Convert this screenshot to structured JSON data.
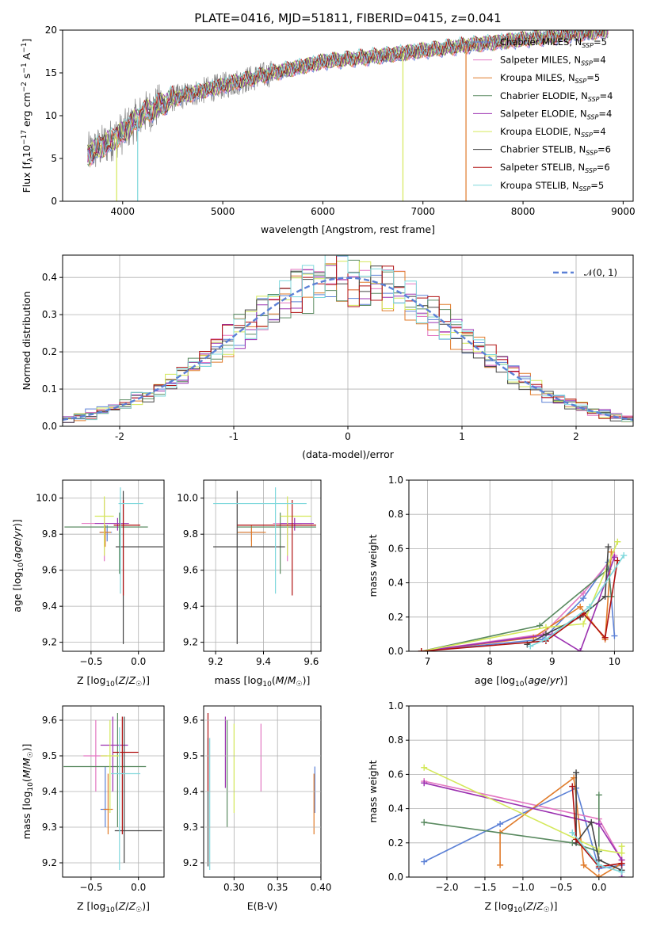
{
  "figure": {
    "title": "PLATE=0416, MJD=51811, FIBERID=0415, z=0.041"
  },
  "colors": {
    "Chabrier MILES": "#5b80d6",
    "Salpeter MILES": "#e377c2",
    "Kroupa MILES": "#e07b2a",
    "Chabrier ELODIE": "#5a8a60",
    "Salpeter ELODIE": "#9b30b0",
    "Kroupa ELODIE": "#d4e85a",
    "Chabrier STELIB": "#444444",
    "Salpeter STELIB": "#b01010",
    "Kroupa STELIB": "#7fd8dc",
    "data": "#808080"
  },
  "chart_data": [
    {
      "id": "spectrum",
      "type": "line",
      "title": "PLATE=0416, MJD=51811, FIBERID=0415, z=0.041",
      "xlabel": "wavelength [Angstrom, rest frame]",
      "ylabel": "Flux [f_λ10^-17 erg cm^-2 s^-1 A^-1]",
      "xlim": [
        3400,
        9100
      ],
      "ylim": [
        0,
        20
      ],
      "xticks": [
        4000,
        5000,
        6000,
        7000,
        8000,
        9000
      ],
      "yticks": [
        0,
        5,
        10,
        15,
        20
      ],
      "grid": false,
      "legend_position": "top-right",
      "series": [
        {
          "name": "Chabrier MILES, N_SSP=5"
        },
        {
          "name": "Salpeter MILES, N_SSP=4"
        },
        {
          "name": "Kroupa MILES, N_SSP=5"
        },
        {
          "name": "Chabrier ELODIE, N_SSP=4"
        },
        {
          "name": "Salpeter ELODIE, N_SSP=4"
        },
        {
          "name": "Kroupa ELODIE, N_SSP=4"
        },
        {
          "name": "Chabrier STELIB, N_SSP=6"
        },
        {
          "name": "Salpeter STELIB, N_SSP=6"
        },
        {
          "name": "Kroupa STELIB, N_SSP=5"
        }
      ],
      "continuum": {
        "x": [
          3650,
          3800,
          4000,
          4200,
          4500,
          5000,
          5500,
          6000,
          6500,
          7000,
          7500,
          8000,
          8500,
          8850
        ],
        "y": [
          5.5,
          6.5,
          8.0,
          10.2,
          12.0,
          13.5,
          15.0,
          16.3,
          16.9,
          17.6,
          18.3,
          18.9,
          19.5,
          20.0
        ]
      },
      "dropouts": [
        {
          "model": "Kroupa ELODIE",
          "x": 3940
        },
        {
          "model": "Kroupa STELIB",
          "x": 4150
        },
        {
          "model": "Kroupa ELODIE",
          "x": 6800
        },
        {
          "model": "Kroupa MILES",
          "x": 7430
        }
      ]
    },
    {
      "id": "residuals",
      "type": "step",
      "xlabel": "(data-model)/error",
      "ylabel": "Normed distribution",
      "xlim": [
        -2.5,
        2.5
      ],
      "ylim": [
        0,
        0.46
      ],
      "xticks": [
        -2,
        -1,
        0,
        1,
        2
      ],
      "yticks": [
        0.0,
        0.1,
        0.2,
        0.3,
        0.4
      ],
      "grid": true,
      "legend_position": "top-right",
      "reference": {
        "name": "𝒩(0, 1)",
        "mean": 0,
        "sigma": 1
      },
      "bin_width": 0.1
    },
    {
      "id": "age_vs_Z",
      "type": "errorbar",
      "xlabel": "Z [log10(Z/Z☉)]",
      "ylabel": "age [log10(age/yr)]",
      "xlim": [
        -0.8,
        0.27
      ],
      "ylim": [
        9.15,
        10.1
      ],
      "xticks": [
        -0.5,
        0.0
      ],
      "yticks": [
        9.2,
        9.4,
        9.6,
        9.8,
        10.0
      ],
      "grid": true,
      "points": [
        {
          "model": "Chabrier MILES",
          "x": -0.33,
          "xerr": [
            0.08,
            0.05
          ],
          "y": 9.81,
          "yerr": [
            0.05,
            0.04
          ]
        },
        {
          "model": "Salpeter MILES",
          "x": -0.36,
          "xerr": [
            0.24,
            0.12
          ],
          "y": 9.86,
          "yerr": [
            0.21,
            0.13
          ]
        },
        {
          "model": "Kroupa MILES",
          "x": -0.35,
          "xerr": [
            0.06,
            0.06
          ],
          "y": 9.81,
          "yerr": [
            0.08,
            0.04
          ]
        },
        {
          "model": "Chabrier ELODIE",
          "x": -0.2,
          "xerr": [
            0.58,
            0.3
          ],
          "y": 9.84,
          "yerr": [
            0.26,
            0.08
          ]
        },
        {
          "model": "Salpeter ELODIE",
          "x": -0.22,
          "xerr": [
            0.24,
            0.12
          ],
          "y": 9.86,
          "yerr": [
            0.04,
            0.03
          ]
        },
        {
          "model": "Kroupa ELODIE",
          "x": -0.36,
          "xerr": [
            0.1,
            0.1
          ],
          "y": 9.9,
          "yerr": [
            0.22,
            0.11
          ]
        },
        {
          "model": "Chabrier STELIB",
          "x": -0.16,
          "xerr": [
            0.08,
            0.42
          ],
          "y": 9.73,
          "yerr": [
            0.54,
            0.31
          ]
        },
        {
          "model": "Salpeter STELIB",
          "x": -0.16,
          "xerr": [
            0.1,
            0.18
          ],
          "y": 9.85,
          "yerr": [
            0.39,
            0.14
          ]
        },
        {
          "model": "Kroupa STELIB",
          "x": -0.19,
          "xerr": [
            0.02,
            0.24
          ],
          "y": 9.97,
          "yerr": [
            0.5,
            0.09
          ]
        }
      ]
    },
    {
      "id": "age_vs_mass",
      "type": "errorbar",
      "xlabel": "mass [log10(M/M☉)]",
      "ylabel": "",
      "xlim": [
        9.15,
        9.64
      ],
      "ylim": [
        9.15,
        10.1
      ],
      "xticks": [
        9.2,
        9.4,
        9.6
      ],
      "yticks": [
        9.2,
        9.4,
        9.6,
        9.8,
        10.0
      ],
      "grid": true,
      "points": [
        {
          "model": "Chabrier MILES",
          "x": 9.35,
          "xerr": [
            0.05,
            0.05
          ],
          "y": 9.81,
          "yerr": [
            0.05,
            0.04
          ]
        },
        {
          "model": "Salpeter MILES",
          "x": 9.5,
          "xerr": [
            0.06,
            0.06
          ],
          "y": 9.86,
          "yerr": [
            0.21,
            0.13
          ]
        },
        {
          "model": "Kroupa MILES",
          "x": 9.35,
          "xerr": [
            0.06,
            0.06
          ],
          "y": 9.81,
          "yerr": [
            0.08,
            0.04
          ]
        },
        {
          "model": "Chabrier ELODIE",
          "x": 9.47,
          "xerr": [
            0.18,
            0.15
          ],
          "y": 9.84,
          "yerr": [
            0.26,
            0.08
          ]
        },
        {
          "model": "Salpeter ELODIE",
          "x": 9.53,
          "xerr": [
            0.06,
            0.08
          ],
          "y": 9.86,
          "yerr": [
            0.04,
            0.03
          ]
        },
        {
          "model": "Kroupa ELODIE",
          "x": 9.5,
          "xerr": [
            0.03,
            0.1
          ],
          "y": 9.9,
          "yerr": [
            0.22,
            0.11
          ]
        },
        {
          "model": "Chabrier STELIB",
          "x": 9.29,
          "xerr": [
            0.1,
            0.2
          ],
          "y": 9.73,
          "yerr": [
            0.54,
            0.31
          ]
        },
        {
          "model": "Salpeter STELIB",
          "x": 9.52,
          "xerr": [
            0.23,
            0.1
          ],
          "y": 9.85,
          "yerr": [
            0.39,
            0.14
          ]
        },
        {
          "model": "Kroupa STELIB",
          "x": 9.45,
          "xerr": [
            0.26,
            0.13
          ],
          "y": 9.97,
          "yerr": [
            0.5,
            0.09
          ]
        }
      ]
    },
    {
      "id": "weight_vs_age",
      "type": "line",
      "xlabel": "age [log10(age/yr)]",
      "ylabel": "mass weight",
      "xlim": [
        6.7,
        10.3
      ],
      "ylim": [
        0,
        1.0
      ],
      "xticks": [
        7,
        8,
        9,
        10
      ],
      "yticks": [
        0.0,
        0.2,
        0.4,
        0.6,
        0.8,
        1.0
      ],
      "grid": true,
      "series": [
        {
          "model": "Chabrier MILES",
          "x": [
            6.9,
            8.85,
            9.5,
            9.9,
            10.0
          ],
          "y": [
            0.0,
            0.07,
            0.31,
            0.52,
            0.09
          ]
        },
        {
          "model": "Salpeter MILES",
          "x": [
            6.9,
            8.85,
            9.5,
            10.0
          ],
          "y": [
            0.0,
            0.1,
            0.34,
            0.56
          ]
        },
        {
          "model": "Kroupa MILES",
          "x": [
            6.9,
            8.7,
            9.45,
            9.85,
            9.95
          ],
          "y": [
            0.0,
            0.08,
            0.26,
            0.07,
            0.58
          ]
        },
        {
          "model": "Chabrier ELODIE",
          "x": [
            6.9,
            8.8,
            9.9,
            9.95
          ],
          "y": [
            0.0,
            0.15,
            0.48,
            0.32
          ]
        },
        {
          "model": "Salpeter ELODIE",
          "x": [
            6.9,
            9.0,
            9.45,
            10.0
          ],
          "y": [
            0.0,
            0.1,
            0.0,
            0.55
          ]
        },
        {
          "model": "Kroupa ELODIE",
          "x": [
            6.9,
            8.9,
            9.5,
            10.05
          ],
          "y": [
            0.0,
            0.14,
            0.16,
            0.64
          ]
        },
        {
          "model": "Chabrier STELIB",
          "x": [
            8.6,
            8.9,
            9.45,
            9.85,
            9.9
          ],
          "y": [
            0.04,
            0.1,
            0.2,
            0.32,
            0.61
          ]
        },
        {
          "model": "Salpeter STELIB",
          "x": [
            6.9,
            8.9,
            9.5,
            9.85,
            10.05
          ],
          "y": [
            0.0,
            0.06,
            0.22,
            0.08,
            0.53
          ]
        },
        {
          "model": "Kroupa STELIB",
          "x": [
            8.65,
            8.9,
            9.6,
            10.15
          ],
          "y": [
            0.03,
            0.07,
            0.26,
            0.56
          ]
        }
      ]
    },
    {
      "id": "mass_vs_Z",
      "type": "errorbar",
      "xlabel": "Z [log10(Z/Z☉)]",
      "ylabel": "mass [log10(M/M☉)]",
      "xlim": [
        -0.8,
        0.27
      ],
      "ylim": [
        9.16,
        9.64
      ],
      "xticks": [
        -0.5,
        0.0
      ],
      "yticks": [
        9.2,
        9.3,
        9.4,
        9.5,
        9.6
      ],
      "grid": true,
      "points": [
        {
          "model": "Chabrier MILES",
          "x": -0.35,
          "xerr": [
            0.05,
            0.03
          ],
          "y": 9.35,
          "yerr": [
            0.05,
            0.12
          ]
        },
        {
          "model": "Salpeter MILES",
          "x": -0.45,
          "xerr": [
            0.13,
            0.12
          ],
          "y": 9.5,
          "yerr": [
            0.1,
            0.1
          ]
        },
        {
          "model": "Kroupa MILES",
          "x": -0.32,
          "xerr": [
            0.05,
            0.05
          ],
          "y": 9.35,
          "yerr": [
            0.07,
            0.1
          ]
        },
        {
          "model": "Chabrier ELODIE",
          "x": -0.22,
          "xerr": [
            0.57,
            0.3
          ],
          "y": 9.47,
          "yerr": [
            0.17,
            0.15
          ]
        },
        {
          "model": "Salpeter ELODIE",
          "x": -0.27,
          "xerr": [
            0.13,
            0.16
          ],
          "y": 9.53,
          "yerr": [
            0.13,
            0.08
          ]
        },
        {
          "model": "Kroupa ELODIE",
          "x": -0.3,
          "xerr": [
            0.1,
            0.1
          ],
          "y": 9.5,
          "yerr": [
            0.16,
            0.1
          ]
        },
        {
          "model": "Chabrier STELIB",
          "x": -0.15,
          "xerr": [
            0.1,
            0.4
          ],
          "y": 9.29,
          "yerr": [
            0.09,
            0.32
          ]
        },
        {
          "model": "Salpeter STELIB",
          "x": -0.17,
          "xerr": [
            0.1,
            0.17
          ],
          "y": 9.51,
          "yerr": [
            0.23,
            0.1
          ]
        },
        {
          "model": "Kroupa STELIB",
          "x": -0.2,
          "xerr": [
            0.09,
            0.22
          ],
          "y": 9.45,
          "yerr": [
            0.27,
            0.13
          ]
        }
      ]
    },
    {
      "id": "mass_vs_ebv",
      "type": "errorbar",
      "xlabel": "E(B-V)",
      "ylabel": "",
      "xlim": [
        0.265,
        0.4
      ],
      "ylim": [
        9.16,
        9.64
      ],
      "xticks": [
        0.3,
        0.35,
        0.4
      ],
      "grid": true,
      "points": [
        {
          "model": "Chabrier MILES",
          "x": 0.393,
          "y": 9.4,
          "yerr": [
            0.06,
            0.07
          ]
        },
        {
          "model": "Salpeter MILES",
          "x": 0.331,
          "y": 9.5,
          "yerr": [
            0.1,
            0.09
          ]
        },
        {
          "model": "Kroupa MILES",
          "x": 0.392,
          "y": 9.35,
          "yerr": [
            0.07,
            0.1
          ]
        },
        {
          "model": "Chabrier ELODIE",
          "x": 0.292,
          "y": 9.45,
          "yerr": [
            0.15,
            0.15
          ]
        },
        {
          "model": "Salpeter ELODIE",
          "x": 0.29,
          "y": 9.51,
          "yerr": [
            0.1,
            0.1
          ]
        },
        {
          "model": "Kroupa ELODIE",
          "x": 0.3,
          "y": 9.46,
          "yerr": [
            0.12,
            0.13
          ]
        },
        {
          "model": "Chabrier STELIB",
          "x": 0.27,
          "y": 9.38,
          "yerr": [
            0.19,
            0.17
          ]
        },
        {
          "model": "Salpeter STELIB",
          "x": 0.27,
          "y": 9.52,
          "yerr": [
            0.12,
            0.1
          ]
        },
        {
          "model": "Kroupa STELIB",
          "x": 0.272,
          "y": 9.37,
          "yerr": [
            0.19,
            0.18
          ]
        }
      ]
    },
    {
      "id": "weight_vs_Z",
      "type": "line",
      "xlabel": "Z [log10(Z/Z☉)]",
      "ylabel": "mass weight",
      "xlim": [
        -2.5,
        0.45
      ],
      "ylim": [
        0,
        1.0
      ],
      "xticks": [
        -2.0,
        -1.5,
        -1.0,
        -0.5,
        0.0
      ],
      "yticks": [
        0.0,
        0.2,
        0.4,
        0.6,
        0.8,
        1.0
      ],
      "grid": true,
      "series": [
        {
          "model": "Chabrier MILES",
          "x": [
            -2.3,
            -1.3,
            -0.3,
            0.0,
            0.3
          ],
          "y": [
            0.09,
            0.31,
            0.52,
            0.05,
            0.07
          ]
        },
        {
          "model": "Salpeter MILES",
          "x": [
            -2.3,
            0.0,
            0.3
          ],
          "y": [
            0.56,
            0.34,
            0.1
          ]
        },
        {
          "model": "Kroupa MILES",
          "x": [
            -1.3,
            -1.3,
            -0.33,
            -0.2,
            0.0,
            0.3
          ],
          "y": [
            0.07,
            0.26,
            0.58,
            0.07,
            0.0,
            0.08
          ]
        },
        {
          "model": "Chabrier ELODIE",
          "x": [
            -2.3,
            -0.35,
            0.0,
            0.0
          ],
          "y": [
            0.32,
            0.2,
            0.15,
            0.48
          ]
        },
        {
          "model": "Salpeter ELODIE",
          "x": [
            -2.3,
            0.0,
            0.3,
            0.3
          ],
          "y": [
            0.55,
            0.31,
            0.1,
            0.0
          ]
        },
        {
          "model": "Kroupa ELODIE",
          "x": [
            -2.3,
            0.0,
            0.3,
            0.3
          ],
          "y": [
            0.64,
            0.16,
            0.14,
            0.18
          ]
        },
        {
          "model": "Chabrier STELIB",
          "x": [
            -0.3,
            -0.3,
            -0.1,
            0.0,
            0.3
          ],
          "y": [
            0.61,
            0.2,
            0.32,
            0.1,
            0.04
          ]
        },
        {
          "model": "Salpeter STELIB",
          "x": [
            -0.35,
            -0.3,
            0.0,
            0.3
          ],
          "y": [
            0.53,
            0.22,
            0.06,
            0.08
          ]
        },
        {
          "model": "Kroupa STELIB",
          "x": [
            -0.35,
            0.0,
            0.3
          ],
          "y": [
            0.26,
            0.07,
            0.03
          ]
        }
      ]
    }
  ]
}
